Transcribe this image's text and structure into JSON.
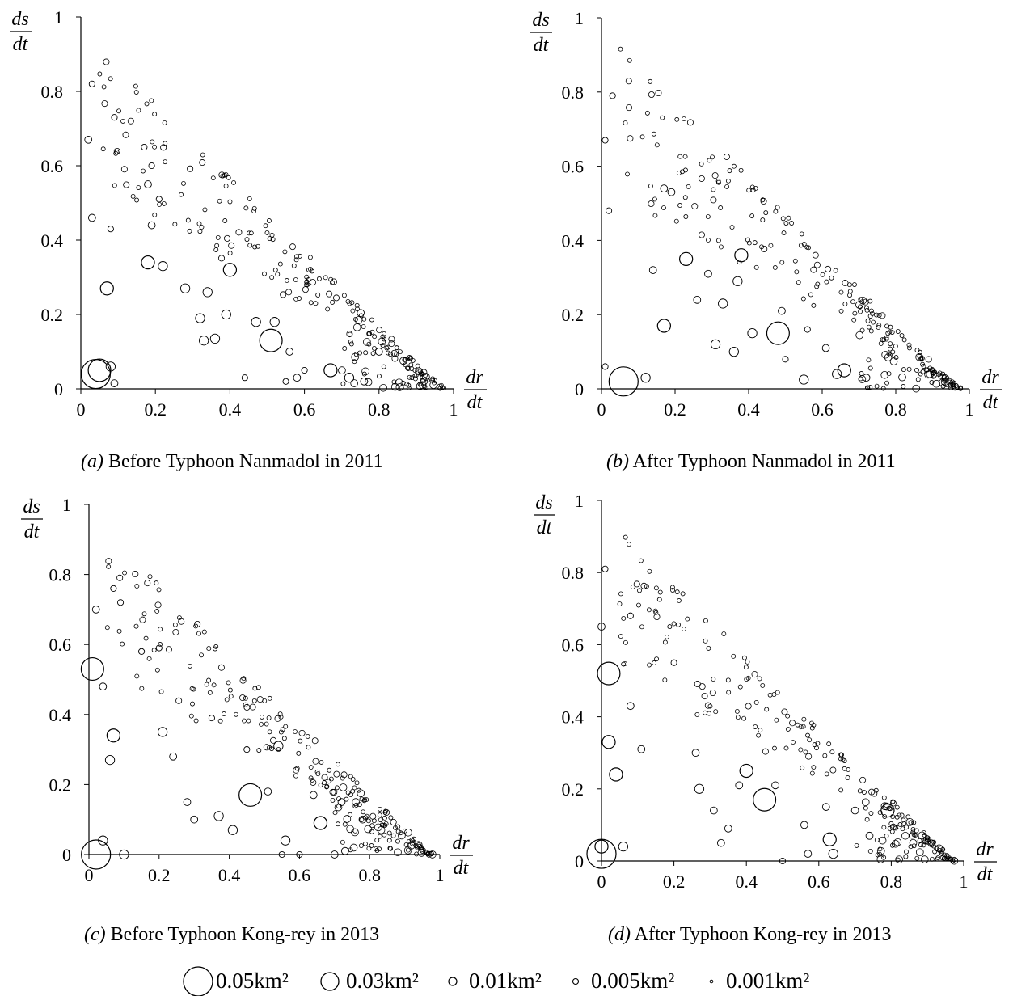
{
  "legend": [
    {
      "label": "0.05km²",
      "area": 0.05
    },
    {
      "label": "0.03km²",
      "area": 0.03
    },
    {
      "label": "0.01km²",
      "area": 0.01
    },
    {
      "label": "0.005km²",
      "area": 0.005
    },
    {
      "label": "0.001km²",
      "area": 0.001
    }
  ],
  "chart_data": [
    {
      "type": "scatter",
      "panel": "(a)",
      "title": "Before Typhoon Nanmadol in 2011",
      "caption_label": "(a)",
      "caption_text": " Before Typhoon Nanmadol in 2011",
      "xlabel": {
        "num": "dr",
        "den": "dt"
      },
      "ylabel": {
        "num": "ds",
        "den": "dt"
      },
      "xlim": [
        0,
        1
      ],
      "ylim": [
        0,
        1
      ],
      "xticks": [
        "0",
        "0.2",
        "0.4",
        "0.6",
        "0.8",
        "1"
      ],
      "yticks": [
        "0",
        "0.2",
        "0.4",
        "0.6",
        "0.8",
        "1"
      ],
      "marker_size_meaning": "area (km²)",
      "points": [
        [
          0.04,
          0.04,
          0.05
        ],
        [
          0.05,
          0.05,
          0.03
        ],
        [
          0.08,
          0.06,
          0.005
        ],
        [
          0.09,
          0.015,
          0.003
        ],
        [
          0.07,
          0.27,
          0.01
        ],
        [
          0.03,
          0.46,
          0.003
        ],
        [
          0.02,
          0.67,
          0.003
        ],
        [
          0.03,
          0.82,
          0.002
        ],
        [
          0.18,
          0.34,
          0.01
        ],
        [
          0.22,
          0.33,
          0.005
        ],
        [
          0.4,
          0.32,
          0.01
        ],
        [
          0.51,
          0.13,
          0.03
        ],
        [
          0.52,
          0.18,
          0.005
        ],
        [
          0.67,
          0.05,
          0.01
        ],
        [
          0.32,
          0.19,
          0.005
        ],
        [
          0.33,
          0.13,
          0.005
        ],
        [
          0.36,
          0.135,
          0.005
        ],
        [
          0.34,
          0.26,
          0.005
        ],
        [
          0.28,
          0.27,
          0.005
        ],
        [
          0.39,
          0.2,
          0.005
        ],
        [
          0.47,
          0.18,
          0.005
        ],
        [
          0.56,
          0.1,
          0.003
        ],
        [
          0.58,
          0.03,
          0.003
        ],
        [
          0.72,
          0.03,
          0.005
        ],
        [
          0.76,
          0.02,
          0.003
        ],
        [
          0.8,
          0.1,
          0.003
        ],
        [
          0.19,
          0.44,
          0.003
        ],
        [
          0.18,
          0.55,
          0.003
        ],
        [
          0.17,
          0.65,
          0.002
        ],
        [
          0.19,
          0.6,
          0.002
        ],
        [
          0.21,
          0.51,
          0.002
        ],
        [
          0.08,
          0.43,
          0.002
        ],
        [
          0.09,
          0.73,
          0.002
        ],
        [
          0.44,
          0.03,
          0.002
        ],
        [
          0.55,
          0.02,
          0.002
        ],
        [
          0.6,
          0.05,
          0.002
        ]
      ]
    },
    {
      "type": "scatter",
      "panel": "(b)",
      "title": "After Typhoon Nanmadol in 2011",
      "caption_label": "(b)",
      "caption_text": " After Typhoon Nanmadol in 2011",
      "xlabel": {
        "num": "dr",
        "den": "dt"
      },
      "ylabel": {
        "num": "ds",
        "den": "dt"
      },
      "xlim": [
        0,
        1
      ],
      "ylim": [
        0,
        1
      ],
      "xticks": [
        "0",
        "0.2",
        "0.4",
        "0.6",
        "0.8",
        "1"
      ],
      "yticks": [
        "0",
        "0.2",
        "0.4",
        "0.6",
        "0.8",
        "1"
      ],
      "marker_size_meaning": "area (km²)",
      "points": [
        [
          0.06,
          0.02,
          0.05
        ],
        [
          0.12,
          0.03,
          0.005
        ],
        [
          0.17,
          0.17,
          0.01
        ],
        [
          0.23,
          0.35,
          0.01
        ],
        [
          0.38,
          0.36,
          0.01
        ],
        [
          0.37,
          0.29,
          0.005
        ],
        [
          0.48,
          0.15,
          0.03
        ],
        [
          0.66,
          0.05,
          0.01
        ],
        [
          0.41,
          0.15,
          0.005
        ],
        [
          0.31,
          0.12,
          0.005
        ],
        [
          0.33,
          0.23,
          0.005
        ],
        [
          0.36,
          0.1,
          0.005
        ],
        [
          0.55,
          0.025,
          0.005
        ],
        [
          0.14,
          0.32,
          0.003
        ],
        [
          0.17,
          0.54,
          0.003
        ],
        [
          0.19,
          0.53,
          0.003
        ],
        [
          0.26,
          0.24,
          0.003
        ],
        [
          0.29,
          0.31,
          0.003
        ],
        [
          0.49,
          0.21,
          0.003
        ],
        [
          0.61,
          0.11,
          0.003
        ],
        [
          0.64,
          0.04,
          0.005
        ],
        [
          0.72,
          0.03,
          0.003
        ],
        [
          0.01,
          0.67,
          0.002
        ],
        [
          0.02,
          0.48,
          0.002
        ],
        [
          0.03,
          0.79,
          0.002
        ],
        [
          0.01,
          0.06,
          0.002
        ],
        [
          0.56,
          0.16,
          0.002
        ],
        [
          0.5,
          0.08,
          0.002
        ]
      ]
    },
    {
      "type": "scatter",
      "panel": "(c)",
      "title": "Before Typhoon Kong-rey in 2013",
      "caption_label": "(c)",
      "caption_text": " Before Typhoon Kong-rey in 2013",
      "xlabel": {
        "num": "dr",
        "den": "dt"
      },
      "ylabel": {
        "num": "ds",
        "den": "dt"
      },
      "xlim": [
        0,
        1
      ],
      "ylim": [
        0,
        1
      ],
      "xticks": [
        "0",
        "0.2",
        "0.4",
        "0.6",
        "0.8",
        "1"
      ],
      "yticks": [
        "0",
        "0.2",
        "0.4",
        "0.6",
        "0.8",
        "1"
      ],
      "marker_size_meaning": "area (km²)",
      "points": [
        [
          0.02,
          0.0,
          0.05
        ],
        [
          0.01,
          0.53,
          0.03
        ],
        [
          0.07,
          0.34,
          0.01
        ],
        [
          0.06,
          0.27,
          0.005
        ],
        [
          0.1,
          0.0,
          0.005
        ],
        [
          0.04,
          0.04,
          0.005
        ],
        [
          0.21,
          0.35,
          0.005
        ],
        [
          0.46,
          0.17,
          0.03
        ],
        [
          0.54,
          0.31,
          0.005
        ],
        [
          0.37,
          0.11,
          0.005
        ],
        [
          0.41,
          0.07,
          0.005
        ],
        [
          0.56,
          0.04,
          0.005
        ],
        [
          0.66,
          0.09,
          0.01
        ],
        [
          0.51,
          0.18,
          0.003
        ],
        [
          0.64,
          0.17,
          0.003
        ],
        [
          0.72,
          0.15,
          0.003
        ],
        [
          0.78,
          0.1,
          0.003
        ],
        [
          0.3,
          0.1,
          0.003
        ],
        [
          0.24,
          0.28,
          0.003
        ],
        [
          0.04,
          0.48,
          0.003
        ],
        [
          0.02,
          0.7,
          0.003
        ],
        [
          0.07,
          0.76,
          0.002
        ],
        [
          0.09,
          0.72,
          0.002
        ],
        [
          0.15,
          0.58,
          0.002
        ],
        [
          0.2,
          0.59,
          0.002
        ],
        [
          0.28,
          0.15,
          0.003
        ],
        [
          0.35,
          0.39,
          0.002
        ],
        [
          0.45,
          0.3,
          0.002
        ],
        [
          0.7,
          0.0,
          0.003
        ],
        [
          0.73,
          0.01,
          0.003
        ],
        [
          0.6,
          0.0,
          0.002
        ],
        [
          0.55,
          0.0,
          0.002
        ]
      ]
    },
    {
      "type": "scatter",
      "panel": "(d)",
      "title": "After Typhoon Kong-rey in 2013",
      "caption_label": "(d)",
      "caption_text": " After Typhoon Kong-rey in 2013",
      "xlabel": {
        "num": "dr",
        "den": "dt"
      },
      "ylabel": {
        "num": "ds",
        "den": "dt"
      },
      "xlim": [
        0,
        1
      ],
      "ylim": [
        0,
        1
      ],
      "xticks": [
        "0",
        "0.2",
        "0.4",
        "0.6",
        "0.8",
        "1"
      ],
      "yticks": [
        "0",
        "0.2",
        "0.4",
        "0.6",
        "0.8",
        "1"
      ],
      "marker_size_meaning": "area (km²)",
      "points": [
        [
          0.0,
          0.02,
          0.05
        ],
        [
          0.0,
          0.04,
          0.01
        ],
        [
          0.02,
          0.52,
          0.03
        ],
        [
          0.02,
          0.33,
          0.01
        ],
        [
          0.04,
          0.24,
          0.01
        ],
        [
          0.06,
          0.04,
          0.005
        ],
        [
          0.45,
          0.17,
          0.03
        ],
        [
          0.4,
          0.25,
          0.01
        ],
        [
          0.27,
          0.2,
          0.005
        ],
        [
          0.26,
          0.3,
          0.003
        ],
        [
          0.31,
          0.14,
          0.003
        ],
        [
          0.35,
          0.09,
          0.003
        ],
        [
          0.33,
          0.05,
          0.003
        ],
        [
          0.63,
          0.06,
          0.01
        ],
        [
          0.64,
          0.02,
          0.005
        ],
        [
          0.56,
          0.1,
          0.003
        ],
        [
          0.62,
          0.15,
          0.003
        ],
        [
          0.7,
          0.14,
          0.003
        ],
        [
          0.79,
          0.14,
          0.01
        ],
        [
          0.74,
          0.07,
          0.003
        ],
        [
          0.08,
          0.43,
          0.003
        ],
        [
          0.0,
          0.65,
          0.003
        ],
        [
          0.01,
          0.81,
          0.002
        ],
        [
          0.08,
          0.68,
          0.002
        ],
        [
          0.11,
          0.31,
          0.003
        ],
        [
          0.5,
          0.0,
          0.002
        ],
        [
          0.57,
          0.02,
          0.003
        ],
        [
          0.48,
          0.21,
          0.003
        ],
        [
          0.38,
          0.21,
          0.003
        ],
        [
          0.2,
          0.55,
          0.002
        ]
      ],
      "synthetic_cluster_note": null
    }
  ]
}
